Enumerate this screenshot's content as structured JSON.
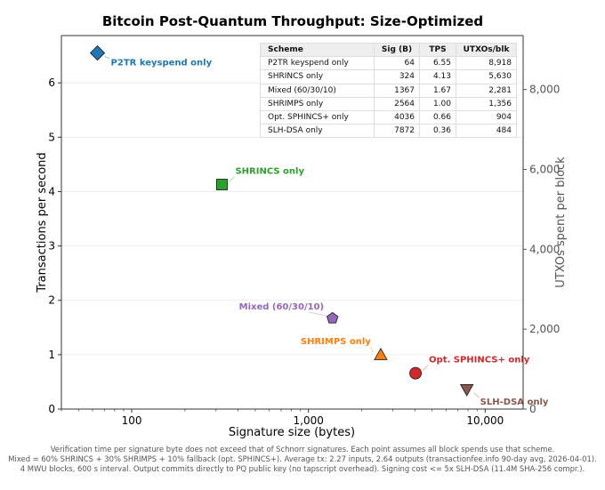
{
  "chart_data": {
    "type": "scatter",
    "title": "Bitcoin Post-Quantum Throughput: Size-Optimized",
    "xlabel": "Signature size (bytes)",
    "ylabel": "Transactions per second",
    "y2label": "UTXOs spent per block",
    "xscale": "log",
    "xlim": [
      40,
      16400
    ],
    "ylim": [
      0,
      6.87
    ],
    "y2lim": [
      0,
      9350
    ],
    "xticks": [
      {
        "value": 100,
        "label": "100"
      },
      {
        "value": 1000,
        "label": "1,000"
      },
      {
        "value": 10000,
        "label": "10,000"
      }
    ],
    "yticks": [
      {
        "value": 0,
        "label": "0"
      },
      {
        "value": 1,
        "label": "1"
      },
      {
        "value": 2,
        "label": "2"
      },
      {
        "value": 3,
        "label": "3"
      },
      {
        "value": 4,
        "label": "4"
      },
      {
        "value": 5,
        "label": "5"
      },
      {
        "value": 6,
        "label": "6"
      }
    ],
    "y2ticks": [
      {
        "value": 0,
        "label": "0"
      },
      {
        "value": 2000,
        "label": "2,000"
      },
      {
        "value": 4000,
        "label": "4,000"
      },
      {
        "value": 6000,
        "label": "6,000"
      },
      {
        "value": 8000,
        "label": "8,000"
      }
    ],
    "grid": "horizontal",
    "points": [
      {
        "name": "P2TR keyspend only",
        "x": 64,
        "y": 6.55,
        "utxos": 8918,
        "marker": "diamond",
        "color": "#1f77b4",
        "label_pos": "below-right"
      },
      {
        "name": "SHRINCS only",
        "x": 324,
        "y": 4.13,
        "utxos": 5630,
        "marker": "square",
        "color": "#2ca02c",
        "label_pos": "above-right"
      },
      {
        "name": "Mixed (60/30/10)",
        "x": 1367,
        "y": 1.67,
        "utxos": 2281,
        "marker": "pentagon",
        "color": "#9467bd",
        "label_pos": "above-left"
      },
      {
        "name": "SHRIMPS only",
        "x": 2564,
        "y": 1.0,
        "utxos": 1356,
        "marker": "triangle-up",
        "color": "#ff7f0e",
        "label_pos": "above-left"
      },
      {
        "name": "Opt. SPHINCS+ only",
        "x": 4036,
        "y": 0.66,
        "utxos": 904,
        "marker": "circle",
        "color": "#d62728",
        "label_pos": "above-right"
      },
      {
        "name": "SLH-DSA only",
        "x": 7872,
        "y": 0.36,
        "utxos": 484,
        "marker": "triangle-down",
        "color": "#8c564b",
        "label_pos": "below-right"
      }
    ],
    "table": {
      "headers": [
        "Scheme",
        "Sig (B)",
        "TPS",
        "UTXOs/blk"
      ],
      "rows": [
        [
          "P2TR keyspend only",
          "64",
          "6.55",
          "8,918"
        ],
        [
          "SHRINCS only",
          "324",
          "4.13",
          "5,630"
        ],
        [
          "Mixed (60/30/10)",
          "1367",
          "1.67",
          "2,281"
        ],
        [
          "SHRIMPS only",
          "2564",
          "1.00",
          "1,356"
        ],
        [
          "Opt. SPHINCS+ only",
          "4036",
          "0.66",
          "904"
        ],
        [
          "SLH-DSA only",
          "7872",
          "0.36",
          "484"
        ]
      ]
    }
  },
  "footer": {
    "lines": [
      "Verification time per signature byte does not exceed that of Schnorr signatures.  Each point assumes all block spends use that scheme.",
      "Mixed = 60% SHRINCS + 30% SHRIMPS + 10% fallback (opt. SPHINCS+).  Average tx: 2.27 inputs, 2.64 outputs (transactionfee.info 90-day avg, 2026-04-01).",
      "4 MWU blocks, 600 s interval.  Output commits directly to PQ public key (no tapscript overhead).  Signing cost <= 5x SLH-DSA (11.4M SHA-256 compr.)."
    ]
  }
}
